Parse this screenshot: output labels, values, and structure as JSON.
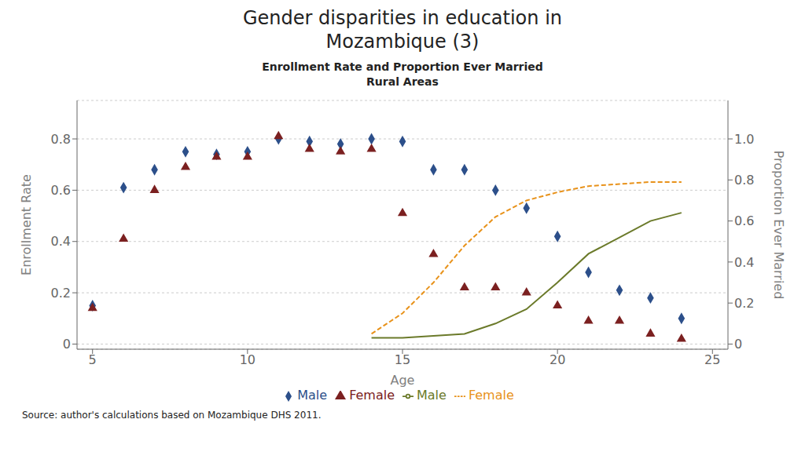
{
  "chart_data": {
    "type": "scatter",
    "title": "Gender disparities in education in\nMozambique (3)",
    "subtitle": [
      "Enrollment Rate and Proportion Ever Married",
      "Rural Areas"
    ],
    "annotations": [
      "Source: author's calculations based on Mozambique DHS 2011."
    ],
    "xlabel": "Age",
    "ylabel": "Enrollment Rate",
    "y2label": "Proportion Ever Married",
    "xlim": [
      4.5,
      25.5
    ],
    "xticks": [
      5,
      10,
      15,
      20,
      25
    ],
    "ylim": [
      -0.02,
      0.95
    ],
    "yticks": [
      0,
      0.2,
      0.4,
      0.6,
      0.8
    ],
    "y2lim": [
      -0.025,
      1.1875
    ],
    "y2ticks": [
      0,
      0.2,
      0.4,
      0.6,
      0.8,
      {
        "value": 1.0,
        "label": "1.0"
      }
    ],
    "grid": true,
    "legend": "bottom",
    "series": [
      {
        "name": "Male",
        "type": "scatter",
        "marker": "diamond",
        "color": "#2c4f8a",
        "x": [
          5,
          6,
          7,
          8,
          9,
          10,
          11,
          12,
          13,
          14,
          15,
          16,
          17,
          18,
          19,
          20,
          21,
          22,
          23,
          24
        ],
        "values": [
          0.15,
          0.61,
          0.68,
          0.75,
          0.74,
          0.75,
          0.8,
          0.79,
          0.78,
          0.8,
          0.79,
          0.68,
          0.68,
          0.6,
          0.53,
          0.42,
          0.28,
          0.21,
          0.18,
          0.1
        ]
      },
      {
        "name": "Female",
        "type": "scatter",
        "marker": "triangle",
        "color": "#7b2020",
        "x": [
          5,
          6,
          7,
          8,
          9,
          10,
          11,
          12,
          13,
          14,
          15,
          16,
          17,
          18,
          19,
          20,
          21,
          22,
          23,
          24
        ],
        "values": [
          0.14,
          0.41,
          0.6,
          0.69,
          0.73,
          0.73,
          0.81,
          0.76,
          0.75,
          0.76,
          0.51,
          0.35,
          0.22,
          0.22,
          0.2,
          0.15,
          0.09,
          0.09,
          0.04,
          0.02
        ]
      },
      {
        "name": "Male",
        "type": "line",
        "line_style": "solid",
        "color": "#6b7a2a",
        "axis": "y2",
        "x": [
          14,
          15,
          16,
          17,
          18,
          19,
          20,
          21,
          22,
          23,
          24
        ],
        "values": [
          0.03,
          0.03,
          0.04,
          0.05,
          0.1,
          0.17,
          0.3,
          0.44,
          0.52,
          0.6,
          0.64
        ]
      },
      {
        "name": "Female",
        "type": "line",
        "line_style": "dashed",
        "color": "#e8921a",
        "axis": "y2",
        "x": [
          14,
          15,
          16,
          17,
          18,
          19,
          20,
          21,
          22,
          23,
          24
        ],
        "values": [
          0.05,
          0.15,
          0.3,
          0.48,
          0.62,
          0.7,
          0.74,
          0.77,
          0.78,
          0.79,
          0.79
        ]
      }
    ]
  }
}
